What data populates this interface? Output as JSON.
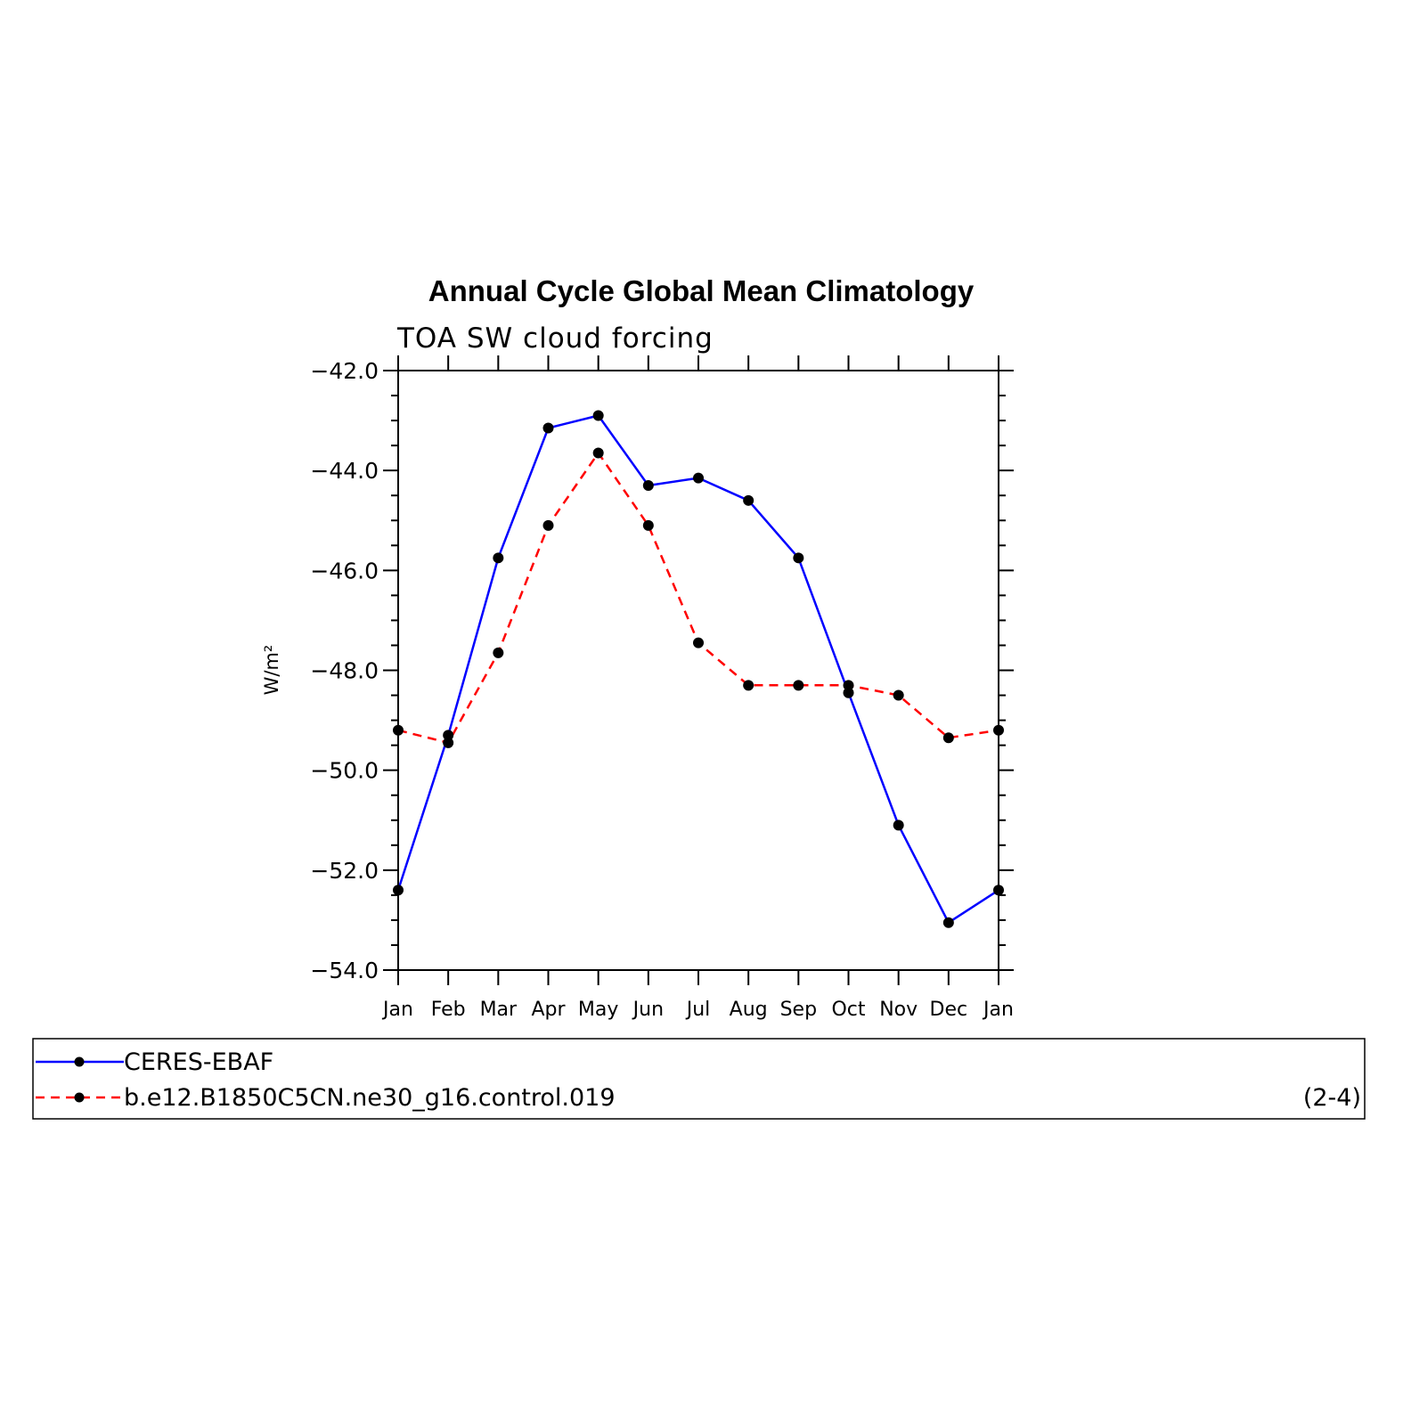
{
  "chart_data": {
    "type": "line",
    "title": "Annual Cycle Global Mean Climatology",
    "subtitle": "TOA SW cloud forcing",
    "ylabel": "W/m²",
    "xlabel": "",
    "categories": [
      "Jan",
      "Feb",
      "Mar",
      "Apr",
      "May",
      "Jun",
      "Jul",
      "Aug",
      "Sep",
      "Oct",
      "Nov",
      "Dec",
      "Jan"
    ],
    "ylim": [
      -54.0,
      -42.0
    ],
    "yticks": [
      "-42.0",
      "-44.0",
      "-46.0",
      "-48.0",
      "-50.0",
      "-52.0",
      "-54.0"
    ],
    "grid": false,
    "legend_position": "bottom",
    "series": [
      {
        "name": "CERES-EBAF",
        "color": "#0000ff",
        "line_style": "solid",
        "values": [
          -52.4,
          -49.3,
          -45.75,
          -43.15,
          -42.9,
          -44.3,
          -44.15,
          -44.6,
          -45.75,
          -48.45,
          -51.1,
          -53.05,
          -52.4
        ]
      },
      {
        "name": "b.e12.B1850C5CN.ne30_g16.control.019",
        "color": "#ff0000",
        "line_style": "dashed",
        "values": [
          -49.2,
          -49.45,
          -47.65,
          -45.1,
          -43.65,
          -45.1,
          -47.45,
          -48.3,
          -48.3,
          -48.3,
          -48.5,
          -49.35,
          -49.2
        ]
      }
    ],
    "panel_label": "(2-4)"
  }
}
